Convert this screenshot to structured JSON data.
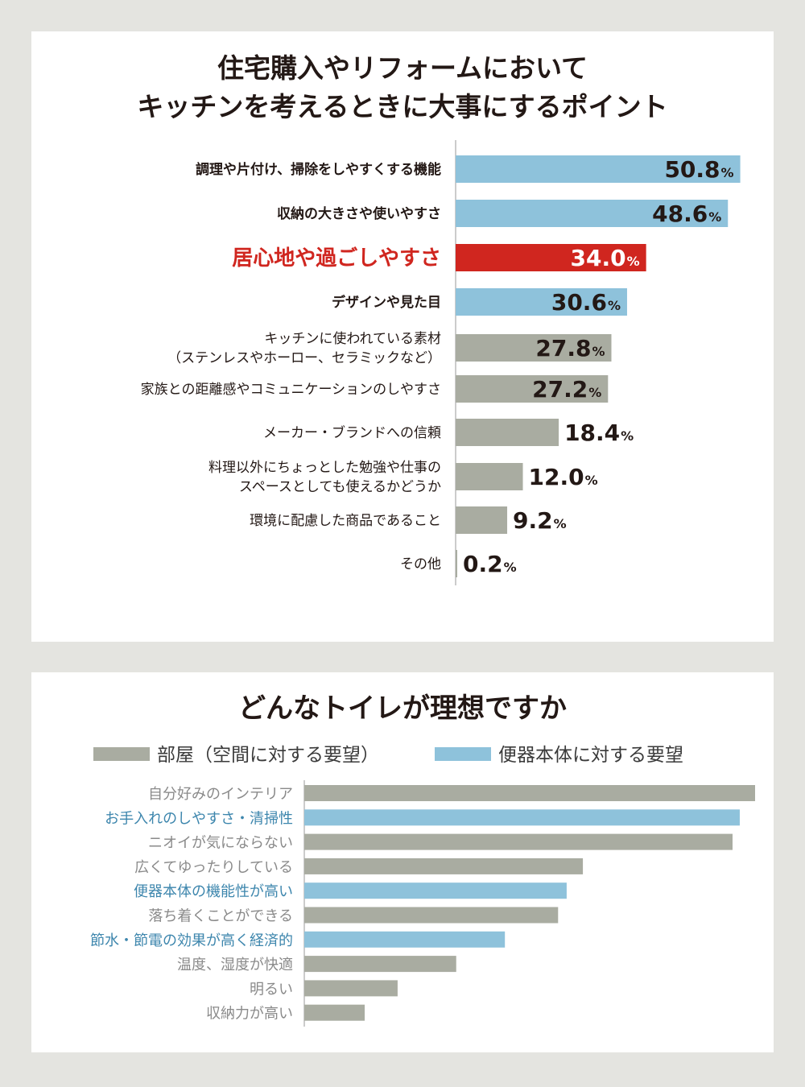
{
  "chart_data": [
    {
      "type": "bar",
      "title": "住宅購入やリフォームにおいて\nキッチンを考えるときに大事にするポイント",
      "unit": "%",
      "colors": {
        "blue": "#8ec2db",
        "red": "#d0261f",
        "gray": "#a9aca1"
      },
      "categories": [
        {
          "lines": [
            "調理や片付け、掃除をしやすくする機能"
          ],
          "value": "50.8",
          "color": "blue",
          "style": "bold"
        },
        {
          "lines": [
            "収納の大きさや使いやすさ"
          ],
          "value": "48.6",
          "color": "blue",
          "style": "bold"
        },
        {
          "lines": [
            "居心地や過ごしやすさ"
          ],
          "value": "34.0",
          "color": "red",
          "style": "highlight"
        },
        {
          "lines": [
            "デザインや見た目"
          ],
          "value": "30.6",
          "color": "blue",
          "style": "bold"
        },
        {
          "lines": [
            "キッチンに使われている素材",
            "（ステンレスやホーロー、セラミックなど）"
          ],
          "value": "27.8",
          "color": "gray",
          "style": "normal"
        },
        {
          "lines": [
            "家族との距離感やコミュニケーションのしやすさ"
          ],
          "value": "27.2",
          "color": "gray",
          "style": "normal"
        },
        {
          "lines": [
            "メーカー・ブランドへの信頼"
          ],
          "value": "18.4",
          "color": "gray",
          "style": "normal"
        },
        {
          "lines": [
            "料理以外にちょっとした勉強や仕事の",
            "スペースとしても使えるかどうか"
          ],
          "value": "12.0",
          "color": "gray",
          "style": "normal"
        },
        {
          "lines": [
            "環境に配慮した商品であること"
          ],
          "value": "9.2",
          "color": "gray",
          "style": "normal"
        },
        {
          "lines": [
            "その他"
          ],
          "value": "0.2",
          "color": "gray",
          "style": "normal"
        }
      ],
      "xlim": [
        0,
        55
      ]
    },
    {
      "type": "bar",
      "title": "どんなトイレが理想ですか",
      "legend": [
        {
          "name": "部屋（空間に対する要望）",
          "color": "#a9aca1"
        },
        {
          "name": "便器本体に対する要望",
          "color": "#8ec2db"
        }
      ],
      "categories": [
        {
          "label": "自分好みのインテリア",
          "value": 100,
          "series": 0
        },
        {
          "label": "お手入れのしやすさ・清掃性",
          "value": 96.6,
          "series": 1
        },
        {
          "label": "ニオイが気にならない",
          "value": 95.0,
          "series": 0
        },
        {
          "label": "広くてゆったりしている",
          "value": 61.8,
          "series": 0
        },
        {
          "label": "便器本体の機能性が高い",
          "value": 58.2,
          "series": 1
        },
        {
          "label": "落ち着くことができる",
          "value": 56.3,
          "series": 0
        },
        {
          "label": "節水・節電の効果が高く経済的",
          "value": 44.5,
          "series": 1
        },
        {
          "label": "温度、湿度が快適",
          "value": 33.7,
          "series": 0
        },
        {
          "label": "明るい",
          "value": 20.7,
          "series": 0
        },
        {
          "label": "収納力が高い",
          "value": 13.4,
          "series": 0
        }
      ],
      "label_colors": [
        "#8a8a8a",
        "#3d86ad"
      ]
    }
  ]
}
